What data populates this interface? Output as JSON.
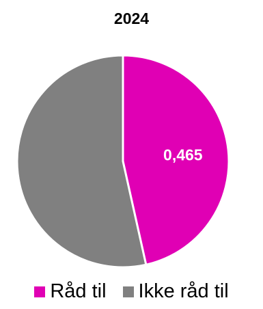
{
  "chart_data": {
    "type": "pie",
    "title": "2024",
    "categories": [
      "Råd til",
      "Ikke råd til"
    ],
    "values": [
      0.465,
      0.535
    ],
    "colors": [
      "#e000b4",
      "#808080"
    ],
    "data_labels": [
      "0,465",
      ""
    ],
    "legend": "bottom",
    "start_angle": "top (12 o'clock)",
    "direction": "clockwise"
  }
}
